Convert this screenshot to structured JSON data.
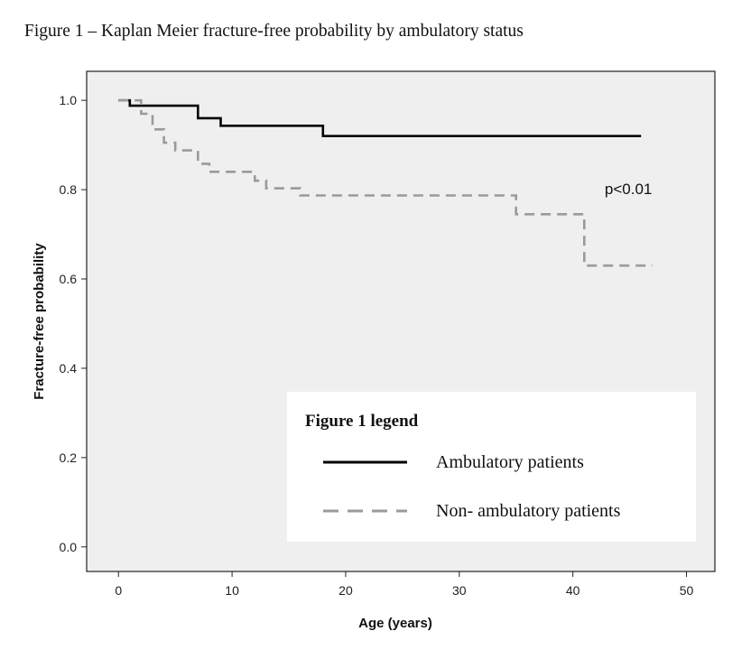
{
  "figure": {
    "title": "Figure  1 – Kaplan Meier fracture-free probability by ambulatory status"
  },
  "chart_data": {
    "type": "line",
    "step": true,
    "xlabel": "Age (years)",
    "ylabel": "Fracture-free probability",
    "xlim": [
      -2.8,
      52.5
    ],
    "ylim": [
      -0.055,
      1.065
    ],
    "xticks": [
      0,
      10,
      20,
      30,
      40,
      50
    ],
    "yticks": [
      0.0,
      0.2,
      0.4,
      0.6,
      0.8,
      1.0
    ],
    "xtick_labels": [
      "0",
      "10",
      "20",
      "30",
      "40",
      "50"
    ],
    "ytick_labels": [
      "0.0",
      "0.2",
      "0.4",
      "0.6",
      "0.8",
      "1.0"
    ],
    "grid": false,
    "background": "#efefef",
    "annotations": [
      {
        "text": "p<0.01",
        "x": 42.8,
        "y": 0.79
      }
    ],
    "legend": {
      "title": "Figure 1 legend",
      "placement": "lower-right"
    },
    "series": [
      {
        "name": "Ambulatory patients",
        "color": "#000000",
        "dash": "solid",
        "points": [
          [
            0,
            1.0
          ],
          [
            1,
            1.0
          ],
          [
            1,
            0.988
          ],
          [
            7,
            0.988
          ],
          [
            7,
            0.96
          ],
          [
            9,
            0.96
          ],
          [
            9,
            0.943
          ],
          [
            18,
            0.943
          ],
          [
            18,
            0.92
          ],
          [
            46,
            0.92
          ]
        ]
      },
      {
        "name": "Non- ambulatory patients",
        "color": "#9a9a9a",
        "dash": "dashed",
        "points": [
          [
            0,
            1.0
          ],
          [
            2,
            1.0
          ],
          [
            2,
            0.97
          ],
          [
            3,
            0.97
          ],
          [
            3,
            0.935
          ],
          [
            4,
            0.935
          ],
          [
            4,
            0.905
          ],
          [
            5,
            0.905
          ],
          [
            5,
            0.888
          ],
          [
            7,
            0.888
          ],
          [
            7,
            0.858
          ],
          [
            8,
            0.858
          ],
          [
            8,
            0.84
          ],
          [
            12,
            0.84
          ],
          [
            12,
            0.82
          ],
          [
            13,
            0.82
          ],
          [
            13,
            0.803
          ],
          [
            16,
            0.803
          ],
          [
            16,
            0.787
          ],
          [
            35,
            0.787
          ],
          [
            35,
            0.745
          ],
          [
            41,
            0.745
          ],
          [
            41,
            0.63
          ],
          [
            47,
            0.63
          ]
        ]
      }
    ]
  }
}
